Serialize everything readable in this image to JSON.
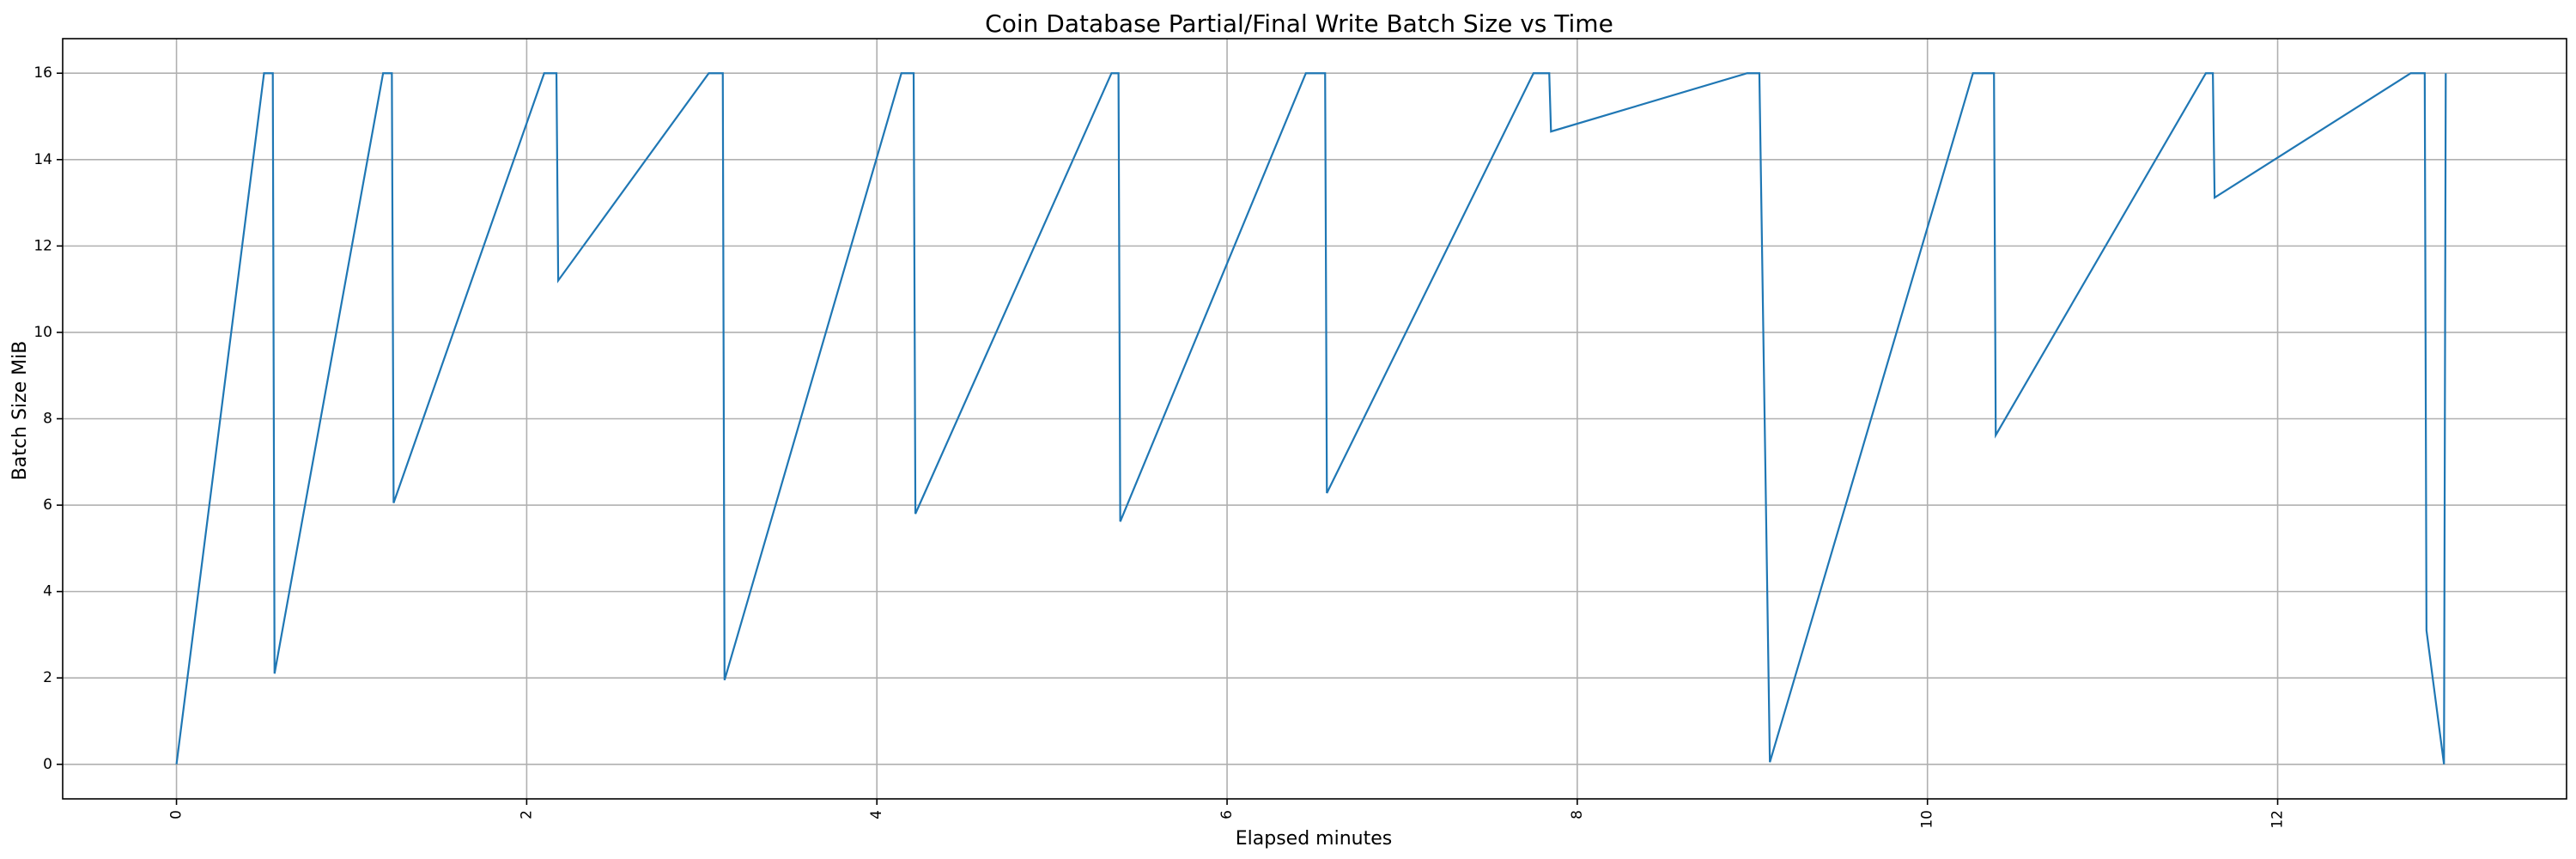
{
  "chart_data": {
    "type": "line",
    "title": "Coin Database Partial/Final Write Batch Size vs Time",
    "xlabel": "Elapsed minutes",
    "ylabel": "Batch Size MiB",
    "xlim": [
      -0.65,
      13.65
    ],
    "ylim": [
      -0.8,
      16.8
    ],
    "x_ticks": [
      0,
      2,
      4,
      6,
      8,
      10,
      12
    ],
    "y_ticks": [
      0,
      2,
      4,
      6,
      8,
      10,
      12,
      14,
      16
    ],
    "x_tick_rotation": 90,
    "grid": true,
    "line_color": "#1f77b4",
    "series": [
      {
        "x": [
          0.0,
          0.5,
          0.55,
          0.56,
          1.18,
          1.23,
          1.24,
          2.1,
          2.17,
          2.18,
          3.04,
          3.12,
          3.13,
          4.14,
          4.21,
          4.22,
          5.34,
          5.38,
          5.39,
          6.45,
          6.56,
          6.57,
          7.75,
          7.84,
          7.85,
          8.97,
          9.04,
          9.1,
          10.26,
          10.38,
          10.39,
          11.59,
          11.63,
          11.64,
          12.76,
          12.84,
          12.85,
          12.95,
          12.96
        ],
        "y": [
          0.0,
          16.0,
          16.0,
          2.1,
          16.0,
          16.0,
          6.05,
          16.0,
          16.0,
          11.2,
          16.0,
          16.0,
          1.95,
          16.0,
          16.0,
          5.8,
          16.0,
          16.0,
          5.62,
          16.0,
          16.0,
          6.28,
          16.0,
          16.0,
          14.65,
          16.0,
          16.0,
          0.05,
          16.0,
          16.0,
          7.62,
          16.0,
          16.0,
          13.12,
          16.0,
          16.0,
          3.1,
          0.0,
          16.0
        ]
      }
    ]
  }
}
